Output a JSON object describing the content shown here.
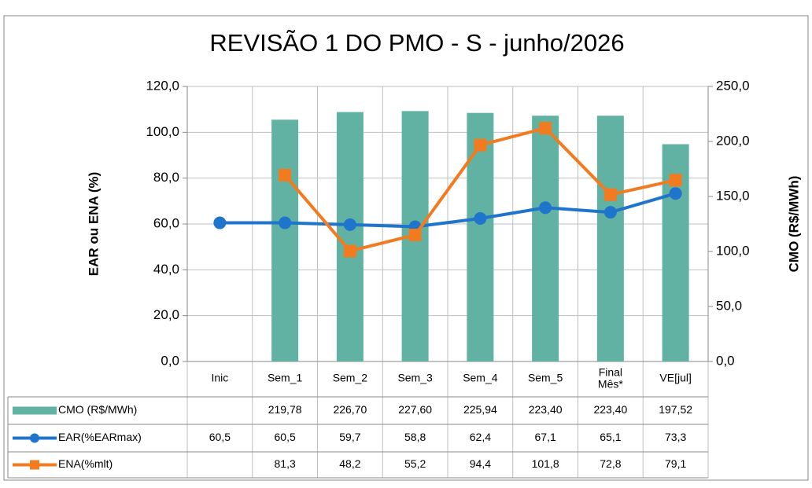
{
  "chart_data": {
    "type": "bar-line-table",
    "title": "REVISÃO 1 DO PMO - S - junho/2026",
    "ylabel": "EAR ou ENA (%)",
    "y2label": "CMO (R$/MWh)",
    "categories": [
      "Inic",
      "Sem_1",
      "Sem_2",
      "Sem_3",
      "Sem_4",
      "Sem_5",
      "Final Mês*",
      "VE[jul]"
    ],
    "ylim": [
      0,
      120
    ],
    "yticks": [
      {
        "value": 0,
        "label": "0,0"
      },
      {
        "value": 20,
        "label": "20,0"
      },
      {
        "value": 40,
        "label": "40,0"
      },
      {
        "value": 60,
        "label": "60,0"
      },
      {
        "value": 80,
        "label": "80,0"
      },
      {
        "value": 100,
        "label": "100,0"
      },
      {
        "value": 120,
        "label": "120,0"
      }
    ],
    "y2lim": [
      0,
      250
    ],
    "y2ticks": [
      {
        "value": 0,
        "label": "0,0"
      },
      {
        "value": 50,
        "label": "50,0"
      },
      {
        "value": 100,
        "label": "100,0"
      },
      {
        "value": 150,
        "label": "150,0"
      },
      {
        "value": 200,
        "label": "200,0"
      },
      {
        "value": 250,
        "label": "250,0"
      }
    ],
    "grid": true,
    "series": [
      {
        "name": "CMO (R$/MWh)",
        "type": "bar",
        "axis": "y2",
        "color": "#62b2a3",
        "values": [
          null,
          219.78,
          226.7,
          227.6,
          225.94,
          223.4,
          223.4,
          197.52
        ],
        "value_labels": [
          null,
          "219,78",
          "226,70",
          "227,60",
          "225,94",
          "223,40",
          "223,40",
          "197,52"
        ]
      },
      {
        "name": "EAR(%EARmax)",
        "type": "line",
        "marker": "circle",
        "color": "#1f74cb",
        "values": [
          60.5,
          60.5,
          59.7,
          58.8,
          62.4,
          67.1,
          65.1,
          73.3
        ],
        "value_labels": [
          "60,5",
          "60,5",
          "59,7",
          "58,8",
          "62,4",
          "67,1",
          "65,1",
          "73,3"
        ]
      },
      {
        "name": "ENA(%mlt)",
        "type": "line",
        "marker": "square",
        "color": "#f27b20",
        "values": [
          null,
          81.3,
          48.2,
          55.2,
          94.4,
          101.8,
          72.8,
          79.1
        ],
        "value_labels": [
          null,
          "81,3",
          "48,2",
          "55,2",
          "94,4",
          "101,8",
          "72,8",
          "79,1"
        ]
      }
    ]
  }
}
